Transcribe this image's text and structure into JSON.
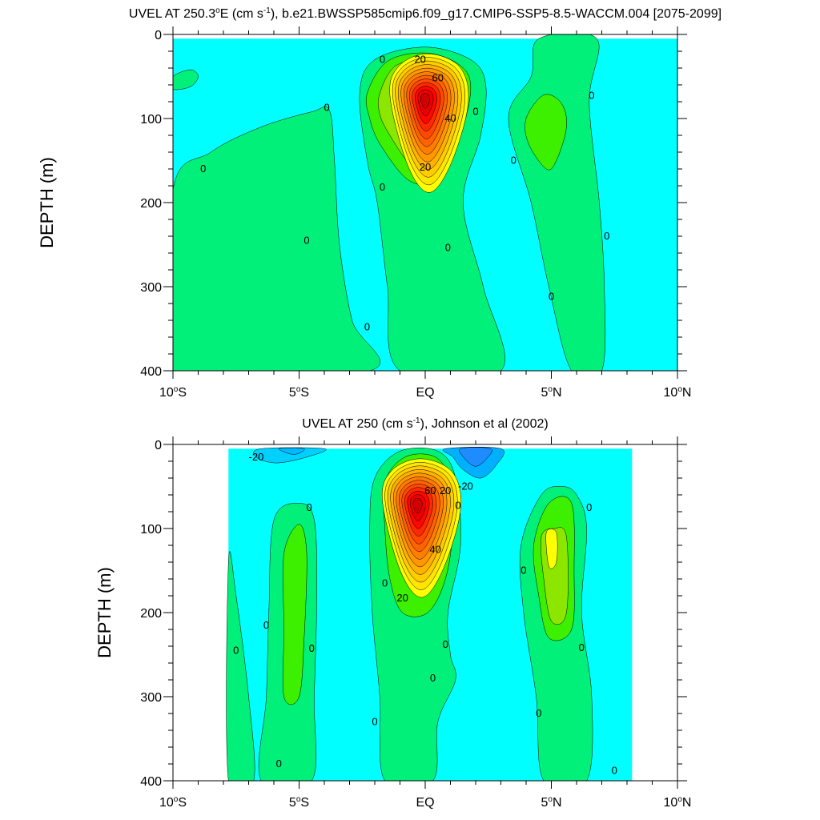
{
  "chart_data": [
    {
      "type": "contour",
      "title": "UVEL AT 250.3°E (cm s-1), b.e21.BWSSP585cmip6.f09_g17.CMIP6-SSP5-8.5-WACCM.004 [2075-2099]",
      "title_parts": {
        "a": "UVEL AT 250.3",
        "deg": "o",
        "b": "E (cm s",
        "sup": "-1",
        "c": "), b.e21.BWSSP585cmip6.f09_g17.CMIP6-SSP5-8.5-WACCM.004 [2075-2099]"
      },
      "xlabel": "",
      "ylabel": "DEPTH (m)",
      "xlim": [
        -10,
        10
      ],
      "ylim": [
        400,
        0
      ],
      "grid": false,
      "x_ticks": [
        {
          "value": -10,
          "label": "10",
          "deg": "o",
          "suffix": "S"
        },
        {
          "value": -5,
          "label": "5",
          "deg": "o",
          "suffix": "S"
        },
        {
          "value": 0,
          "label": "EQ",
          "deg": "",
          "suffix": ""
        },
        {
          "value": 5,
          "label": "5",
          "deg": "o",
          "suffix": "N"
        },
        {
          "value": 10,
          "label": "10",
          "deg": "o",
          "suffix": "N"
        }
      ],
      "y_ticks": [
        0,
        100,
        200,
        300,
        400
      ],
      "data_extent": {
        "x": [
          -10,
          10
        ],
        "y": [
          5,
          400
        ]
      },
      "contour_interval": 5,
      "core": {
        "lat": 0.0,
        "depth": 78,
        "max_value": 75
      },
      "contour_labels": [
        {
          "text": "0",
          "lat": -1.7,
          "depth": 30
        },
        {
          "text": "20",
          "lat": -0.2,
          "depth": 30
        },
        {
          "text": "60",
          "lat": 0.5,
          "depth": 52
        },
        {
          "text": "40",
          "lat": 1.0,
          "depth": 100
        },
        {
          "text": "0",
          "lat": 2.0,
          "depth": 92
        },
        {
          "text": "20",
          "lat": 0.0,
          "depth": 158
        },
        {
          "text": "0",
          "lat": -3.9,
          "depth": 87
        },
        {
          "text": "0",
          "lat": -8.8,
          "depth": 160
        },
        {
          "text": "0",
          "lat": -1.7,
          "depth": 182
        },
        {
          "text": "0",
          "lat": -4.7,
          "depth": 245
        },
        {
          "text": "0",
          "lat": 0.9,
          "depth": 254
        },
        {
          "text": "0",
          "lat": -2.3,
          "depth": 348
        },
        {
          "text": "0",
          "lat": 3.5,
          "depth": 150
        },
        {
          "text": "0",
          "lat": 6.6,
          "depth": 73
        },
        {
          "text": "0",
          "lat": 7.2,
          "depth": 240
        },
        {
          "text": "0",
          "lat": 5.0,
          "depth": 312
        }
      ]
    },
    {
      "type": "contour",
      "title": "UVEL AT 250 (cm s-1), Johnson et al (2002)",
      "title_parts": {
        "a": "UVEL AT 250 (cm s",
        "deg": "",
        "b": "",
        "sup": "-1",
        "c": "), Johnson et al (2002)"
      },
      "xlabel": "",
      "ylabel": "DEPTH (m)",
      "xlim": [
        -10,
        10
      ],
      "ylim": [
        400,
        0
      ],
      "grid": false,
      "x_ticks": [
        {
          "value": -10,
          "label": "10",
          "deg": "o",
          "suffix": "S"
        },
        {
          "value": -5,
          "label": "5",
          "deg": "o",
          "suffix": "S"
        },
        {
          "value": 0,
          "label": "EQ",
          "deg": "",
          "suffix": ""
        },
        {
          "value": 5,
          "label": "5",
          "deg": "o",
          "suffix": "N"
        },
        {
          "value": 10,
          "label": "10",
          "deg": "o",
          "suffix": "N"
        }
      ],
      "y_ticks": [
        0,
        100,
        200,
        300,
        400
      ],
      "data_extent": {
        "x": [
          -7.8,
          8.2
        ],
        "y": [
          5,
          400
        ]
      },
      "contour_interval": 5,
      "core": {
        "lat": -0.3,
        "depth": 72,
        "max_value": 75
      },
      "contour_labels": [
        {
          "text": "-20",
          "lat": -6.7,
          "depth": 15
        },
        {
          "text": "60",
          "lat": 0.2,
          "depth": 55
        },
        {
          "text": "20",
          "lat": 0.8,
          "depth": 55
        },
        {
          "text": "-20",
          "lat": 1.6,
          "depth": 50
        },
        {
          "text": "0",
          "lat": 1.3,
          "depth": 73
        },
        {
          "text": "40",
          "lat": 0.4,
          "depth": 125
        },
        {
          "text": "20",
          "lat": -0.9,
          "depth": 183
        },
        {
          "text": "0",
          "lat": -1.6,
          "depth": 165
        },
        {
          "text": "0",
          "lat": -4.6,
          "depth": 75
        },
        {
          "text": "0",
          "lat": -6.3,
          "depth": 215
        },
        {
          "text": "0",
          "lat": -7.5,
          "depth": 245
        },
        {
          "text": "0",
          "lat": -4.5,
          "depth": 243
        },
        {
          "text": "0",
          "lat": 0.8,
          "depth": 238
        },
        {
          "text": "0",
          "lat": 0.3,
          "depth": 278
        },
        {
          "text": "0",
          "lat": -2.0,
          "depth": 330
        },
        {
          "text": "0",
          "lat": -5.8,
          "depth": 380
        },
        {
          "text": "0",
          "lat": 3.9,
          "depth": 150
        },
        {
          "text": "0",
          "lat": 6.5,
          "depth": 75
        },
        {
          "text": "0",
          "lat": 6.2,
          "depth": 242
        },
        {
          "text": "0",
          "lat": 4.5,
          "depth": 320
        },
        {
          "text": "0",
          "lat": 7.5,
          "depth": 388
        }
      ]
    }
  ],
  "colors": {
    "cyan": "#00ffff",
    "light_green": "#00f07a",
    "green": "#3cf000",
    "yellow_green": "#8ce600",
    "yellow": "#ffff00",
    "orange": "#ff9000",
    "red": "#ff0000",
    "blue": "#1e8cff"
  }
}
